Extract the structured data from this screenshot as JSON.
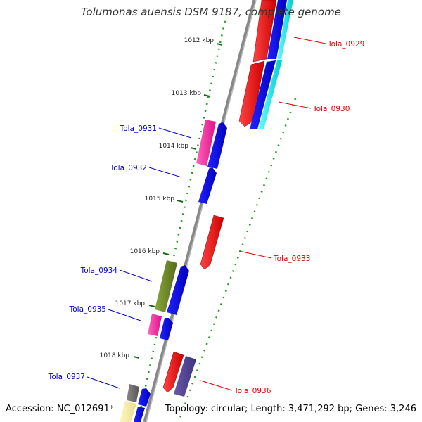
{
  "title": "Tolumonas auensis DSM 9187, complete genome",
  "footer": {
    "accession": "Accession: NC_012691",
    "summary": "Topology: circular; Length: 3,471,292 bp; Genes: 3,246"
  },
  "ticks": [
    "1012 kbp",
    "1013 kbp",
    "1014 kbp",
    "1015 kbp",
    "1016 kbp",
    "1017 kbp",
    "1018 kbp"
  ],
  "genes": [
    {
      "label": "Tola_0929",
      "strand": "+",
      "color": "#ff0000"
    },
    {
      "label": "Tola_0930",
      "strand": "+",
      "color": "#ff0000"
    },
    {
      "label": "Tola_0931",
      "strand": "-",
      "color": "#0000cc"
    },
    {
      "label": "Tola_0932",
      "strand": "-",
      "color": "#0000cc"
    },
    {
      "label": "Tola_0933",
      "strand": "+",
      "color": "#ff0000"
    },
    {
      "label": "Tola_0934",
      "strand": "-",
      "color": "#0000cc"
    },
    {
      "label": "Tola_0935",
      "strand": "-",
      "color": "#0000cc"
    },
    {
      "label": "Tola_0936",
      "strand": "+",
      "color": "#ff0000"
    },
    {
      "label": "Tola_0937",
      "strand": "-",
      "color": "#0000cc"
    }
  ]
}
